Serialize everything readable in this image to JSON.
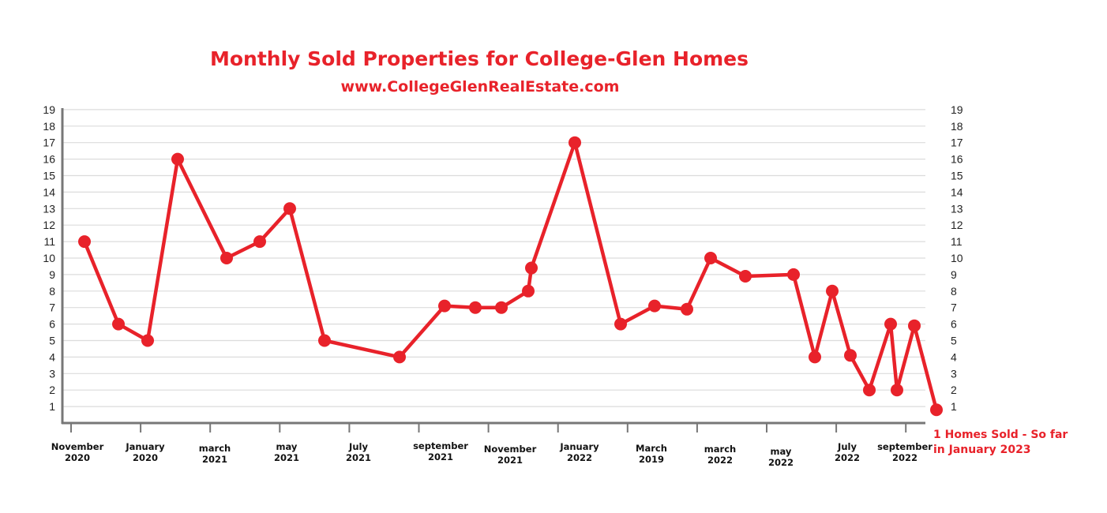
{
  "chart_data": {
    "type": "line",
    "title": "Monthly Sold Properties for College-Glen Homes",
    "subtitle": "www.CollegeGlenRealEstate.com",
    "ylim": [
      0,
      19
    ],
    "yticks": [
      1,
      2,
      3,
      4,
      5,
      6,
      7,
      8,
      9,
      10,
      11,
      12,
      13,
      14,
      15,
      16,
      17,
      18,
      19
    ],
    "grid": true,
    "color": "#e8222a",
    "x_labels": [
      {
        "line1": "November",
        "line2": "2020"
      },
      {
        "line1": "January",
        "line2": "2020"
      },
      {
        "line1": "march",
        "line2": "2021"
      },
      {
        "line1": "may",
        "line2": "2021"
      },
      {
        "line1": "July",
        "line2": "2021"
      },
      {
        "line1": "september",
        "line2": "2021"
      },
      {
        "line1": "November",
        "line2": "2021"
      },
      {
        "line1": "January",
        "line2": "2022"
      },
      {
        "line1": "March",
        "line2": "2019"
      },
      {
        "line1": "march",
        "line2": "2022"
      },
      {
        "line1": "may",
        "line2": "2022"
      },
      {
        "line1": "July",
        "line2": "2022"
      },
      {
        "line1": "september",
        "line2": "2022"
      }
    ],
    "values": [
      11,
      6,
      5,
      16,
      10,
      11,
      13,
      5,
      4,
      7.1,
      7,
      7,
      8,
      9.4,
      17,
      6,
      7.1,
      6.9,
      10,
      8.9,
      9,
      4,
      8,
      4.1,
      2,
      6,
      2,
      5.9,
      0.8
    ],
    "annotation": {
      "line1": "1 Homes Sold - So far",
      "line2": "in January 2023"
    }
  }
}
